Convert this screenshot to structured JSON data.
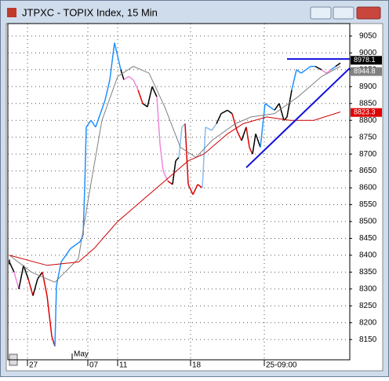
{
  "chart_data": {
    "type": "line",
    "title": "JTPXC - TOPIX Index, 15 Min",
    "xlim": [
      0,
      436
    ],
    "ylim": [
      8090,
      9087
    ],
    "xticks": [
      {
        "value": 25,
        "label": "27"
      },
      {
        "value": 102,
        "label": "07"
      },
      {
        "value": 140,
        "label": "11"
      },
      {
        "value": 233,
        "label": "18"
      },
      {
        "value": 327,
        "label": "25-09:00"
      }
    ],
    "month_label": {
      "value": 82,
      "label": "May"
    },
    "yticks": [
      8150,
      8200,
      8250,
      8300,
      8350,
      8400,
      8450,
      8500,
      8550,
      8600,
      8650,
      8700,
      8750,
      8800,
      8850,
      8900,
      8950,
      9000,
      9050
    ],
    "grid": true,
    "series": [
      {
        "color": "#1e90ff",
        "x": [
          2,
          8,
          14,
          20,
          26,
          32,
          38,
          44,
          50,
          56,
          60,
          62,
          68,
          74,
          80,
          86,
          92,
          96,
          98,
          100,
          106,
          112,
          118,
          124,
          130,
          136,
          140,
          144,
          148,
          154,
          160,
          166,
          172,
          178,
          184,
          190,
          194,
          198,
          204,
          210,
          214,
          218,
          222,
          226,
          230,
          236,
          242,
          248,
          252,
          260,
          266,
          272,
          280,
          286,
          292,
          298,
          304,
          308,
          312,
          316,
          322,
          328,
          334,
          340,
          346,
          352,
          356,
          362,
          368,
          374,
          380,
          386,
          392,
          400,
          406,
          412,
          418,
          424
        ],
        "values": [
          8380,
          8350,
          8300,
          8370,
          8330,
          8280,
          8330,
          8350,
          8280,
          8160,
          8130,
          8310,
          8380,
          8400,
          8420,
          8430,
          8440,
          8460,
          8600,
          8780,
          8800,
          8780,
          8820,
          8860,
          8920,
          9030,
          8990,
          8950,
          8920,
          8930,
          8920,
          8890,
          8850,
          8840,
          8900,
          8870,
          8730,
          8650,
          8620,
          8610,
          8680,
          8690,
          8780,
          8790,
          8610,
          8580,
          8610,
          8600,
          8780,
          8770,
          8790,
          8820,
          8830,
          8820,
          8770,
          8740,
          8780,
          8720,
          8700,
          8760,
          8720,
          8850,
          8840,
          8830,
          8850,
          8800,
          8810,
          8890,
          8950,
          8940,
          8950,
          8960,
          8960,
          8950,
          8940,
          8950,
          8960,
          8970
        ],
        "colors": [
          "#000000",
          "#000000",
          "#ee88dd",
          "#000000",
          "#000000",
          "#e00000",
          "#000000",
          "#000000",
          "#e00000",
          "#e00000",
          "#e00000",
          "#1e90ff",
          "#1e90ff",
          "#1e90ff",
          "#1e90ff",
          "#1e90ff",
          "#1e90ff",
          "#1e90ff",
          "#1e90ff",
          "#1e90ff",
          "#1e90ff",
          "#1e90ff",
          "#1e90ff",
          "#1e90ff",
          "#1e90ff",
          "#1e90ff",
          "#1e90ff",
          "#1e90ff",
          "#000000",
          "#ee88dd",
          "#ee88dd",
          "#ee88dd",
          "#e00000",
          "#000000",
          "#000000",
          "#000000",
          "#ee88dd",
          "#ee88dd",
          "#ee88dd",
          "#e00000",
          "#000000",
          "#000000",
          "#88bbee",
          "#88bbee",
          "#e00000",
          "#e00000",
          "#e00000",
          "#e00000",
          "#88bbee",
          "#88bbee",
          "#88bbee",
          "#000000",
          "#000000",
          "#000000",
          "#e00000",
          "#e00000",
          "#000000",
          "#e00000",
          "#e00000",
          "#000000",
          "#000000",
          "#1e90ff",
          "#1e90ff",
          "#1e90ff",
          "#000000",
          "#000000",
          "#000000",
          "#000000",
          "#1e90ff",
          "#1e90ff",
          "#1e90ff",
          "#1e90ff",
          "#1e90ff",
          "#000000",
          "#ee88dd",
          "#ee88dd",
          "#1e90ff",
          "#000000"
        ]
      },
      {
        "color": "#808080",
        "x": [
          2,
          30,
          60,
          90,
          105,
          120,
          140,
          160,
          180,
          200,
          220,
          240,
          260,
          290,
          310,
          340,
          370,
          400,
          424
        ],
        "values": [
          8400,
          8350,
          8320,
          8390,
          8600,
          8800,
          8930,
          8960,
          8940,
          8840,
          8720,
          8690,
          8740,
          8790,
          8810,
          8820,
          8870,
          8930,
          8960
        ]
      },
      {
        "color": "#cc0000",
        "x": [
          2,
          50,
          90,
          110,
          140,
          170,
          200,
          230,
          250,
          280,
          300,
          330,
          360,
          390,
          424
        ],
        "values": [
          8400,
          8370,
          8380,
          8420,
          8500,
          8560,
          8620,
          8680,
          8700,
          8760,
          8790,
          8810,
          8800,
          8800,
          8825
        ]
      }
    ],
    "trendlines": [
      {
        "color": "#1010e0",
        "x": [
          304,
          436
        ],
        "values": [
          8660,
          8955
        ]
      },
      {
        "color": "#1010e0",
        "x": [
          356,
          436
        ],
        "values": [
          8982,
          8982
        ]
      }
    ],
    "price_labels": [
      {
        "value": 8978.1,
        "label": "8978.1",
        "color": "#000000"
      },
      {
        "value": 8944.8,
        "label": "8944.8",
        "color": "#808080"
      },
      {
        "value": 8823.3,
        "label": "8823.3",
        "color": "#e00000"
      }
    ]
  }
}
